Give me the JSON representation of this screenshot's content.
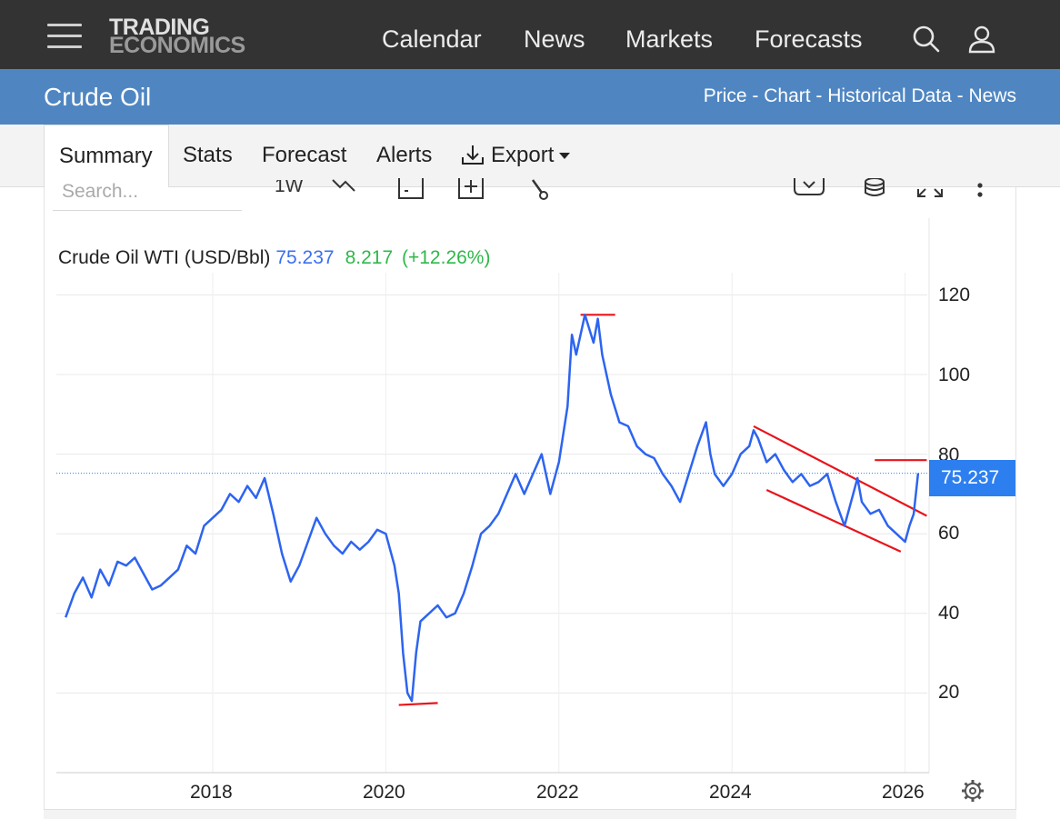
{
  "header": {
    "logo_line1": "TRADING",
    "logo_line2": "ECONOMICS",
    "nav": [
      "Calendar",
      "News",
      "Markets",
      "Forecasts"
    ],
    "icons": [
      "menu-icon",
      "search-icon",
      "user-icon"
    ]
  },
  "subheader": {
    "title": "Crude Oil",
    "links": [
      "Price",
      "Chart",
      "Historical Data",
      "News"
    ],
    "separator": " - "
  },
  "tabs": {
    "items": [
      "Summary",
      "Stats",
      "Forecast",
      "Alerts",
      "Export"
    ],
    "active": "Summary"
  },
  "toolbar": {
    "search_placeholder": "Search...",
    "interval": "1W",
    "icons": [
      "line-type-icon",
      "calendar-icon",
      "add-compare-icon",
      "draw-tool-icon",
      "download-icon",
      "database-icon",
      "fullscreen-icon",
      "more-icon"
    ]
  },
  "chart_data": {
    "type": "line",
    "series_label": "Crude Oil WTI (USD/Bbl)",
    "last_price": "75.237",
    "change": "8.217",
    "change_pct": "(+12.26%)",
    "price_badge": "75.237",
    "y_ticks": [
      "120",
      "100",
      "80",
      "60",
      "40",
      "20"
    ],
    "x_ticks": [
      "2018",
      "2020",
      "2022",
      "2024",
      "2026"
    ],
    "ylim": [
      0,
      120
    ],
    "colors": {
      "line": "#2d64f0",
      "annotation": "#e8141b",
      "badge": "#2d7ff0",
      "change": "#2fb84a"
    },
    "series": [
      {
        "x": [
          2016.3,
          2016.4,
          2016.5,
          2016.6,
          2016.7,
          2016.8,
          2016.9,
          2017.0,
          2017.1,
          2017.2,
          2017.3,
          2017.4,
          2017.5,
          2017.6,
          2017.7,
          2017.8,
          2017.9,
          2018.0,
          2018.1,
          2018.2,
          2018.3,
          2018.4,
          2018.5,
          2018.6,
          2018.7,
          2018.8,
          2018.9,
          2019.0,
          2019.1,
          2019.2,
          2019.3,
          2019.4,
          2019.5,
          2019.6,
          2019.7,
          2019.8,
          2019.9,
          2020.0,
          2020.1,
          2020.15,
          2020.2,
          2020.25,
          2020.3,
          2020.35,
          2020.4,
          2020.5,
          2020.6,
          2020.7,
          2020.8,
          2020.9,
          2021.0,
          2021.1,
          2021.2,
          2021.3,
          2021.4,
          2021.5,
          2021.6,
          2021.7,
          2021.8,
          2021.9,
          2022.0,
          2022.1,
          2022.15,
          2022.2,
          2022.3,
          2022.4,
          2022.45,
          2022.5,
          2022.6,
          2022.7,
          2022.8,
          2022.9,
          2023.0,
          2023.1,
          2023.2,
          2023.3,
          2023.4,
          2023.5,
          2023.6,
          2023.7,
          2023.75,
          2023.8,
          2023.9,
          2024.0,
          2024.1,
          2024.2,
          2024.25,
          2024.3,
          2024.4,
          2024.5,
          2024.6,
          2024.7,
          2024.8,
          2024.9,
          2025.0,
          2025.1,
          2025.2,
          2025.3,
          2025.4,
          2025.45,
          2025.5,
          2025.6,
          2025.7,
          2025.8,
          2025.9,
          2026.0,
          2026.05,
          2026.1,
          2026.15
        ],
        "values": [
          39,
          45,
          49,
          44,
          51,
          47,
          53,
          52,
          54,
          50,
          46,
          47,
          49,
          51,
          57,
          55,
          62,
          64,
          66,
          70,
          68,
          72,
          69,
          74,
          65,
          55,
          48,
          52,
          58,
          64,
          60,
          57,
          55,
          58,
          56,
          58,
          61,
          60,
          52,
          45,
          30,
          20,
          18,
          30,
          38,
          40,
          42,
          39,
          40,
          45,
          52,
          60,
          62,
          65,
          70,
          75,
          70,
          75,
          80,
          70,
          78,
          92,
          110,
          105,
          115,
          108,
          114,
          105,
          95,
          88,
          87,
          82,
          80,
          79,
          75,
          72,
          68,
          75,
          82,
          88,
          80,
          75,
          72,
          75,
          80,
          82,
          86,
          84,
          78,
          80,
          76,
          73,
          75,
          72,
          73,
          75,
          68,
          62,
          70,
          74,
          68,
          65,
          66,
          62,
          60,
          58,
          62,
          65,
          75.2
        ]
      }
    ],
    "annotations": [
      {
        "label": "high-2022",
        "x1": 2022.25,
        "y1": 115,
        "x2": 2022.65,
        "y2": 115
      },
      {
        "label": "low-2020",
        "x1": 2020.15,
        "y1": 17,
        "x2": 2020.6,
        "y2": 17.5
      },
      {
        "label": "resistance",
        "x1": 2024.25,
        "y1": 87,
        "x2": 2026.25,
        "y2": 64.5
      },
      {
        "label": "support",
        "x1": 2024.4,
        "y1": 71,
        "x2": 2025.95,
        "y2": 55.5
      },
      {
        "label": "breakout",
        "x1": 2025.65,
        "y1": 78.5,
        "x2": 2026.25,
        "y2": 78.5
      }
    ]
  }
}
